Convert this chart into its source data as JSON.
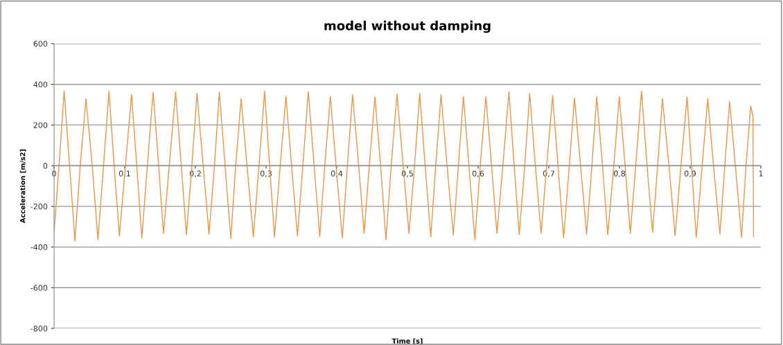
{
  "chart_data": {
    "type": "line",
    "title": "model without damping",
    "xlabel": "Time [s]",
    "ylabel": "Acceleration [m/s2]",
    "series": [
      {
        "color": "#e8974a",
        "x": [
          0.0,
          0.007,
          0.0143,
          0.022,
          0.0296,
          0.037,
          0.0452,
          0.054,
          0.0621,
          0.07,
          0.0777,
          0.085,
          0.0924,
          0.101,
          0.1096,
          0.117,
          0.1242,
          0.132,
          0.1402,
          0.148,
          0.1548,
          0.163,
          0.172,
          0.18,
          0.1873,
          0.195,
          0.2022,
          0.211,
          0.2192,
          0.227,
          0.2338,
          0.242,
          0.2501,
          0.257,
          0.2647,
          0.273,
          0.282,
          0.29,
          0.2979,
          0.305,
          0.3119,
          0.32,
          0.3281,
          0.336,
          0.3444,
          0.352,
          0.3597,
          0.368,
          0.3759,
          0.383,
          0.3909,
          0.399,
          0.4078,
          0.415,
          0.4224,
          0.431,
          0.4387,
          0.446,
          0.454,
          0.462,
          0.4696,
          0.477,
          0.4852,
          0.494,
          0.5021,
          0.51,
          0.5174,
          0.525,
          0.533,
          0.54,
          0.5476,
          0.556,
          0.5649,
          0.572,
          0.5792,
          0.587,
          0.5954,
          0.603,
          0.611,
          0.619,
          0.6266,
          0.635,
          0.6436,
          0.651,
          0.6582,
          0.666,
          0.6729,
          0.681,
          0.6891,
          0.697,
          0.7054,
          0.713,
          0.721,
          0.729,
          0.7363,
          0.745,
          0.7535,
          0.761,
          0.7678,
          0.776,
          0.7834,
          0.792,
          0.7997,
          0.808,
          0.8153,
          0.823,
          0.8312,
          0.839,
          0.8468,
          0.854,
          0.8608,
          0.87,
          0.8787,
          0.887,
          0.8956,
          0.902,
          0.9086,
          0.917,
          0.9249,
          0.933,
          0.9421,
          0.949,
          0.9558,
          0.964,
          0.9727,
          0.979,
          0.9857,
          0.9889,
          0.9897
        ],
        "values": [
          -328,
          0,
          367,
          0,
          -371,
          0,
          330,
          0,
          -364,
          0,
          367,
          0,
          -345,
          0,
          350,
          0,
          -356,
          0,
          362,
          0,
          -333,
          0,
          364,
          0,
          -339,
          0,
          356,
          0,
          -337,
          0,
          362,
          0,
          -359,
          0,
          330,
          0,
          -350,
          0,
          367,
          0,
          -350,
          0,
          341,
          0,
          -345,
          0,
          364,
          0,
          -348,
          0,
          341,
          0,
          -356,
          0,
          350,
          0,
          -333,
          0,
          339,
          0,
          -364,
          0,
          353,
          0,
          -333,
          0,
          356,
          0,
          -350,
          0,
          350,
          0,
          -341,
          0,
          339,
          0,
          -364,
          0,
          339,
          0,
          -333,
          0,
          364,
          0,
          -339,
          0,
          356,
          0,
          -333,
          0,
          345,
          0,
          -356,
          0,
          333,
          0,
          -337,
          0,
          339,
          0,
          -339,
          0,
          339,
          0,
          -333,
          0,
          367,
          0,
          -328,
          0,
          330,
          0,
          -345,
          0,
          339,
          0,
          -353,
          0,
          330,
          0,
          -337,
          0,
          316,
          0,
          -353,
          0,
          294,
          243,
          -350
        ]
      }
    ],
    "xlim": [
      0,
      1
    ],
    "ylim": [
      -800,
      600
    ],
    "xticks": [
      0,
      {
        "value": 0.1,
        "label": "0,1"
      },
      {
        "value": 0.2,
        "label": "0,2"
      },
      {
        "value": 0.3,
        "label": "0,3"
      },
      {
        "value": 0.4,
        "label": "0,4"
      },
      {
        "value": 0.5,
        "label": "0,5"
      },
      {
        "value": 0.6,
        "label": "0,6"
      },
      {
        "value": 0.7,
        "label": "0,7"
      },
      {
        "value": 0.8,
        "label": "0,8"
      },
      {
        "value": 0.9,
        "label": "0,9"
      },
      1
    ],
    "yticks": [
      -800,
      -600,
      -400,
      -200,
      0,
      200,
      400,
      600
    ],
    "grid": "y",
    "marker": "none",
    "line_style": "solid"
  }
}
